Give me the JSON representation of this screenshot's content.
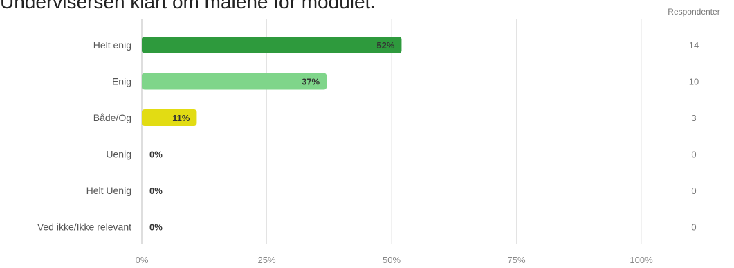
{
  "title": "Undervisersen klart om målene for modulet.",
  "chart_data": {
    "type": "bar",
    "orientation": "horizontal",
    "categories": [
      "Helt enig",
      "Enig",
      "Både/Og",
      "Uenig",
      "Helt Uenig",
      "Ved ikke/Ikke relevant"
    ],
    "values": [
      52,
      37,
      11,
      0,
      0,
      0
    ],
    "value_labels": [
      "52%",
      "37%",
      "11%",
      "0%",
      "0%",
      "0%"
    ],
    "colors": [
      "#2e9a3d",
      "#7fd58a",
      "#e2dc13",
      "#cccccc",
      "#cccccc",
      "#cccccc"
    ],
    "xlim": [
      0,
      100
    ],
    "x_ticks": [
      0,
      25,
      50,
      75,
      100
    ],
    "x_tick_labels": [
      "0%",
      "25%",
      "50%",
      "75%",
      "100%"
    ],
    "respondents_header": "Respondenter",
    "respondents": [
      "14",
      "10",
      "3",
      "0",
      "0",
      "0"
    ],
    "grid": true
  }
}
